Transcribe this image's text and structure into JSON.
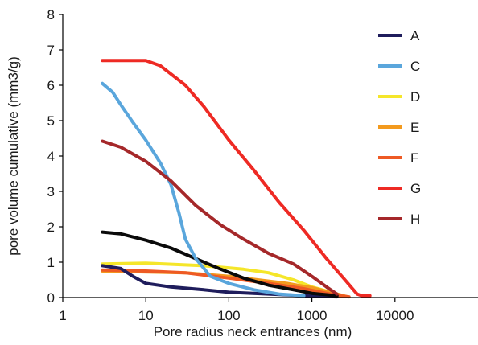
{
  "chart_data": {
    "type": "line",
    "title": "",
    "xlabel": "Pore radius neck entrances (nm)",
    "ylabel": "pore volume cumulative (mm3/g)",
    "x_scale": "log",
    "xlim": [
      1,
      100000
    ],
    "ylim": [
      0,
      8
    ],
    "x_ticks": [
      1,
      10,
      100,
      1000,
      10000
    ],
    "x_tick_labels": [
      "1",
      "10",
      "100",
      "1000",
      "10000"
    ],
    "y_ticks": [
      0,
      1,
      2,
      3,
      4,
      5,
      6,
      7,
      8
    ],
    "y_tick_labels": [
      "0",
      "1",
      "2",
      "3",
      "4",
      "5",
      "6",
      "7",
      "8"
    ],
    "grid": false,
    "legend_position": "right",
    "legend": [
      {
        "name": "A",
        "color": "#1f1d5c"
      },
      {
        "name": "C",
        "color": "#5aa6dc"
      },
      {
        "name": "D",
        "color": "#f5e62a"
      },
      {
        "name": "E",
        "color": "#f39a1e"
      },
      {
        "name": "F",
        "color": "#ee5a24"
      },
      {
        "name": "G",
        "color": "#ee2a24"
      },
      {
        "name": "H",
        "color": "#a5282a"
      }
    ],
    "series": [
      {
        "color": "#f5e62a",
        "points": [
          [
            3,
            0.95
          ],
          [
            10,
            0.97
          ],
          [
            50,
            0.9
          ],
          [
            150,
            0.8
          ],
          [
            300,
            0.7
          ],
          [
            600,
            0.5
          ],
          [
            1000,
            0.3
          ],
          [
            2000,
            0.1
          ],
          [
            2500,
            0.03
          ]
        ]
      },
      {
        "color": "#f39a1e",
        "points": [
          [
            3,
            0.75
          ],
          [
            30,
            0.7
          ],
          [
            100,
            0.6
          ],
          [
            500,
            0.4
          ],
          [
            1000,
            0.28
          ],
          [
            2000,
            0.1
          ],
          [
            2600,
            0.03
          ]
        ]
      },
      {
        "color": "#ee5a24",
        "points": [
          [
            3,
            0.78
          ],
          [
            10,
            0.75
          ],
          [
            30,
            0.7
          ],
          [
            100,
            0.55
          ],
          [
            300,
            0.4
          ],
          [
            800,
            0.25
          ],
          [
            1500,
            0.12
          ],
          [
            2200,
            0.05
          ],
          [
            2800,
            0.02
          ]
        ]
      },
      {
        "color": "#1f1d5c",
        "points": [
          [
            3,
            0.9
          ],
          [
            5,
            0.82
          ],
          [
            7,
            0.6
          ],
          [
            10,
            0.4
          ],
          [
            20,
            0.3
          ],
          [
            50,
            0.22
          ],
          [
            100,
            0.15
          ],
          [
            300,
            0.1
          ],
          [
            700,
            0.06
          ],
          [
            1500,
            0.03
          ],
          [
            2000,
            0.02
          ]
        ]
      },
      {
        "color": "#0a0a0a",
        "points": [
          [
            3,
            1.85
          ],
          [
            5,
            1.8
          ],
          [
            10,
            1.62
          ],
          [
            20,
            1.4
          ],
          [
            40,
            1.1
          ],
          [
            80,
            0.8
          ],
          [
            150,
            0.55
          ],
          [
            300,
            0.35
          ],
          [
            600,
            0.22
          ],
          [
            1000,
            0.12
          ],
          [
            1500,
            0.08
          ],
          [
            2000,
            0.05
          ]
        ]
      },
      {
        "color": "#5aa6dc",
        "points": [
          [
            3,
            6.05
          ],
          [
            4,
            5.8
          ],
          [
            5,
            5.45
          ],
          [
            7,
            4.95
          ],
          [
            10,
            4.45
          ],
          [
            15,
            3.8
          ],
          [
            20,
            3.2
          ],
          [
            25,
            2.4
          ],
          [
            30,
            1.65
          ],
          [
            40,
            1.1
          ],
          [
            60,
            0.6
          ],
          [
            100,
            0.4
          ],
          [
            200,
            0.22
          ],
          [
            400,
            0.1
          ],
          [
            800,
            0.05
          ]
        ]
      },
      {
        "color": "#a5282a",
        "points": [
          [
            3,
            4.42
          ],
          [
            5,
            4.25
          ],
          [
            10,
            3.85
          ],
          [
            20,
            3.3
          ],
          [
            40,
            2.6
          ],
          [
            80,
            2.05
          ],
          [
            150,
            1.65
          ],
          [
            300,
            1.25
          ],
          [
            600,
            0.95
          ],
          [
            1000,
            0.6
          ],
          [
            1500,
            0.3
          ],
          [
            2000,
            0.1
          ]
        ]
      },
      {
        "color": "#ee2a24",
        "points": [
          [
            3,
            6.7
          ],
          [
            10,
            6.7
          ],
          [
            15,
            6.55
          ],
          [
            30,
            6.0
          ],
          [
            50,
            5.4
          ],
          [
            100,
            4.45
          ],
          [
            200,
            3.6
          ],
          [
            400,
            2.7
          ],
          [
            800,
            1.9
          ],
          [
            1500,
            1.1
          ],
          [
            2500,
            0.5
          ],
          [
            3500,
            0.1
          ],
          [
            4000,
            0.05
          ],
          [
            5000,
            0.05
          ]
        ]
      }
    ]
  }
}
